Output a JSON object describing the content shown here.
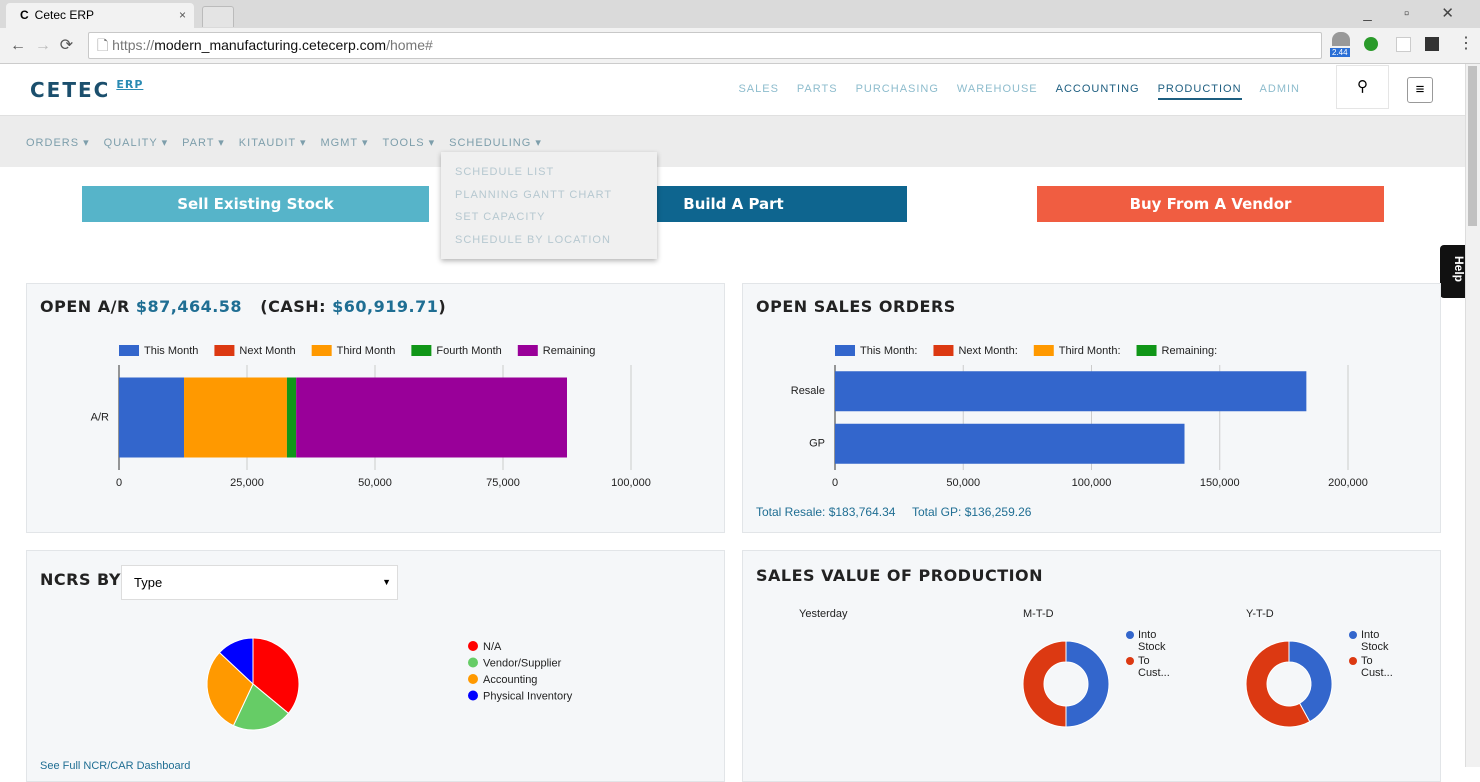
{
  "browser": {
    "tab_title": "Cetec ERP",
    "url_scheme": "https://",
    "url_host": "modern_manufacturing.cetecerp.com",
    "url_path": "/home#",
    "extension_badge": "2.44"
  },
  "header": {
    "logo": "CETEC",
    "logo_sub": "ERP",
    "nav": [
      "SALES",
      "PARTS",
      "PURCHASING",
      "WAREHOUSE",
      "ACCOUNTING",
      "PRODUCTION",
      "ADMIN"
    ]
  },
  "subnav": {
    "items": [
      "ORDERS ▾",
      "QUALITY ▾",
      "PART ▾",
      "KITAUDIT ▾",
      "MGMT ▾",
      "TOOLS ▾",
      "SCHEDULING ▾"
    ],
    "dropdown": [
      "SCHEDULE LIST",
      "PLANNING GANTT CHART",
      "SET CAPACITY",
      "SCHEDULE BY LOCATION"
    ]
  },
  "actions": [
    "Sell Existing Stock",
    "Build A Part",
    "Buy From A Vendor"
  ],
  "help": "Help",
  "ar_panel": {
    "title": "OPEN A/R",
    "amount": "$87,464.58",
    "cash_prefix": "(CASH:",
    "cash": "$60,919.71",
    "cash_suffix": ")",
    "chart": {
      "type": "bar",
      "orientation": "horizontal",
      "stacked": true,
      "categories": [
        "A/R"
      ],
      "series": [
        {
          "name": "This Month",
          "color": "#3366cc",
          "values": [
            12700
          ]
        },
        {
          "name": "Next Month",
          "color": "#dc3912",
          "values": [
            0
          ]
        },
        {
          "name": "Third Month",
          "color": "#ff9900",
          "values": [
            20100
          ]
        },
        {
          "name": "Fourth Month",
          "color": "#109618",
          "values": [
            1800
          ]
        },
        {
          "name": "Remaining",
          "color": "#990099",
          "values": [
            52900
          ]
        }
      ],
      "xlim": [
        0,
        100000
      ],
      "xticks": [
        0,
        {
          "value": 25000,
          "label": "25,000"
        },
        {
          "value": 50000,
          "label": "50,000"
        },
        {
          "value": 75000,
          "label": "75,000"
        },
        {
          "value": 100000,
          "label": "100,000"
        }
      ],
      "grid": true
    }
  },
  "sales_panel": {
    "title": "OPEN SALES ORDERS",
    "chart": {
      "type": "bar",
      "orientation": "horizontal",
      "stacked": true,
      "categories": [
        "Resale",
        "GP"
      ],
      "series": [
        {
          "name": "This Month:",
          "color": "#3366cc",
          "values": [
            183764.34,
            136259.26
          ]
        },
        {
          "name": "Next Month:",
          "color": "#dc3912",
          "values": [
            0,
            0
          ]
        },
        {
          "name": "Third Month:",
          "color": "#ff9900",
          "values": [
            0,
            0
          ]
        },
        {
          "name": "Remaining:",
          "color": "#109618",
          "values": [
            0,
            0
          ]
        }
      ],
      "xlim": [
        0,
        200000
      ],
      "xticks": [
        0,
        {
          "value": 50000,
          "label": "50,000"
        },
        {
          "value": 100000,
          "label": "100,000"
        },
        {
          "value": 150000,
          "label": "150,000"
        },
        {
          "value": 200000,
          "label": "200,000"
        }
      ],
      "grid": true
    },
    "totals": [
      "Total Resale: $183,764.34",
      "Total GP: $136,259.26"
    ]
  },
  "ncr_panel": {
    "title": "NCRS BY:",
    "select": "Type",
    "link": "See Full NCR/CAR Dashboard",
    "chart": {
      "type": "pie",
      "categories": [
        "N/A",
        "Vendor/Supplier",
        "Accounting",
        "Physical Inventory"
      ],
      "values": [
        36,
        21,
        30,
        13
      ],
      "colors": [
        "#ff0000",
        "#66cc66",
        "#ff9900",
        "#0000ff"
      ]
    }
  },
  "production_panel": {
    "title": "SALES VALUE OF PRODUCTION",
    "chart": {
      "type": "donut",
      "series_names": [
        "Into Stock",
        "To Cust..."
      ],
      "colors": [
        "#3366cc",
        "#dc3912"
      ],
      "charts": [
        {
          "title": "Yesterday",
          "values": [
            null,
            null
          ]
        },
        {
          "title": "M-T-D",
          "values": [
            50,
            50
          ]
        },
        {
          "title": "Y-T-D",
          "values": [
            42,
            58
          ]
        }
      ]
    }
  }
}
